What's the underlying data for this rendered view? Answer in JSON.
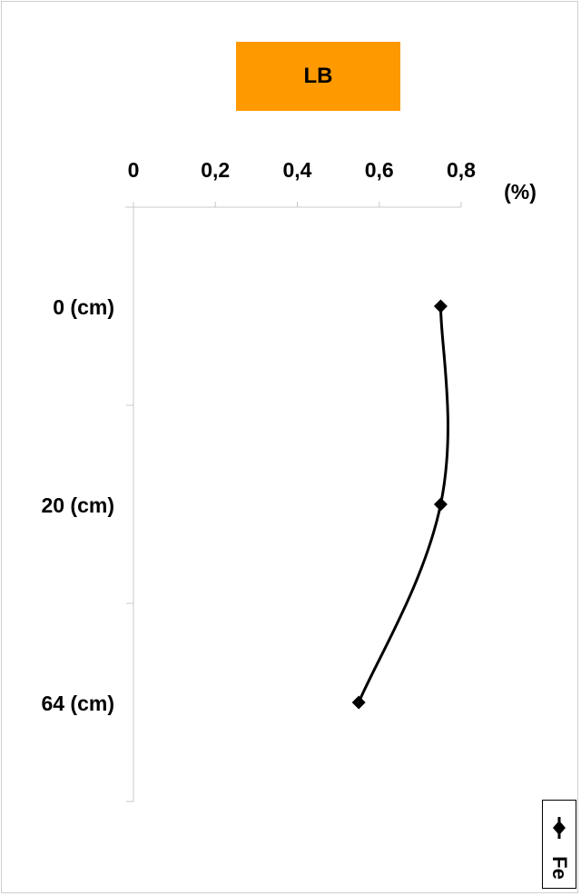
{
  "chart_data": {
    "type": "line",
    "orientation": "vertical-profile",
    "title": "LB",
    "title_box_color": "#ff9900",
    "x_unit_label": "(%)",
    "x_ticks": [
      "0",
      "0,2",
      "0,4",
      "0,6",
      "0,8"
    ],
    "xlim": [
      0,
      0.8
    ],
    "depth_categories": [
      "0 (cm)",
      "20 (cm)",
      "64 (cm)"
    ],
    "series": [
      {
        "name": "Fe",
        "values": [
          0.75,
          0.75,
          0.55
        ],
        "color": "#000000",
        "marker": "diamond"
      }
    ],
    "grid": false,
    "legend_placement": "bottom-right"
  }
}
